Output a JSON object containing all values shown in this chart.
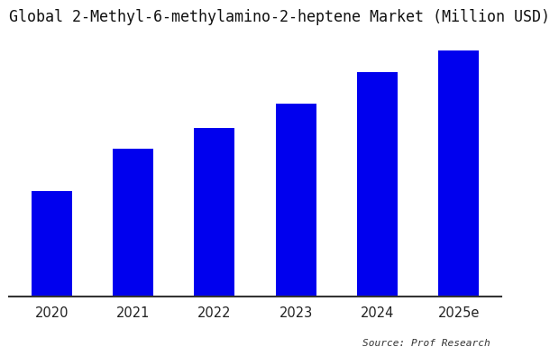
{
  "title": "Global 2-Methyl-6-methylamino-2-heptene Market (Million USD)",
  "categories": [
    "2020",
    "2021",
    "2022",
    "2023",
    "2024",
    "2025e"
  ],
  "values": [
    30,
    42,
    48,
    55,
    64,
    70
  ],
  "bar_color": "#0000EE",
  "background_color": "#ffffff",
  "source_text": "Source: Prof Research",
  "title_fontsize": 12,
  "ylim": [
    0,
    75
  ]
}
